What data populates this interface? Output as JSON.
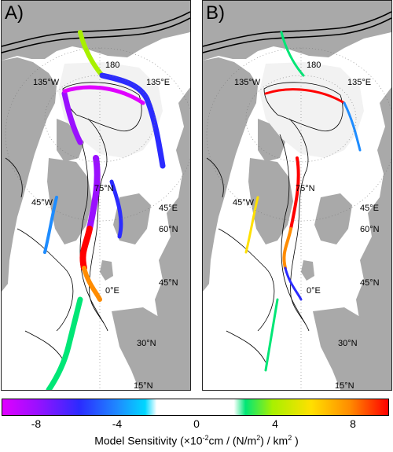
{
  "panels": [
    {
      "letter": "A)",
      "labels": [
        "180",
        "135°W",
        "135°E",
        "75°N",
        "45°W",
        "45°E",
        "60°N",
        "45°N",
        "0°E",
        "30°N",
        "15°N"
      ]
    },
    {
      "letter": "B)",
      "labels": [
        "180",
        "135°W",
        "135°E",
        "75°N",
        "45°W",
        "45°E",
        "60°N",
        "45°N",
        "0°E",
        "30°N",
        "15°N"
      ]
    }
  ],
  "colorbar": {
    "ticks": [
      "-8",
      "-4",
      "0",
      "4",
      "8"
    ],
    "label_main": "Model Sensitivity (×10",
    "label_exp1": "-2",
    "label_mid": "cm / (N/m",
    "label_exp2": "2",
    "label_mid2": ") / km",
    "label_exp3": "2",
    "label_end": " )",
    "min": -10,
    "max": 10,
    "colors": {
      "neg_max": "#e000ff",
      "neg_mid": "#2b2bff",
      "neg_low": "#00d7ff",
      "zero": "#ffffff",
      "pos_low": "#00e676",
      "pos_mid": "#ffe000",
      "pos_max": "#ff0000"
    }
  },
  "map_colors": {
    "land": "#a9a9a9",
    "ocean": "#ffffff",
    "contour": "#000000"
  }
}
